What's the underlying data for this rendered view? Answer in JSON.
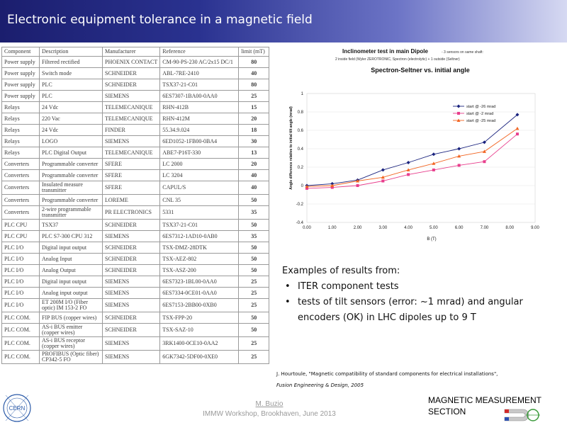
{
  "header": {
    "title": "Electronic equipment tolerance in a magnetic field"
  },
  "table": {
    "columns": [
      "Component",
      "Description",
      "Manufacturer",
      "Reference",
      "limit (mT)"
    ],
    "rows": [
      [
        "Power supply",
        "Filtered rectified",
        "PHOENIX CONTACT",
        "CM-90-PS-230  AC/2x15 DC/1",
        "80"
      ],
      [
        "Power supply",
        "Switch mode",
        "SCHNEIDER",
        "ABL-7RE-2410",
        "40"
      ],
      [
        "Power supply",
        "PLC",
        "SCHNEIDER",
        "TSX37-21-C01",
        "80"
      ],
      [
        "Power supply",
        "PLC",
        "SIEMENS",
        "6ES7307-1BA00-0AA0",
        "25"
      ],
      [
        "Relays",
        "24 Vdc",
        "TELEMECANIQUE",
        "RHN-412B",
        "15"
      ],
      [
        "Relays",
        "220 Vac",
        "TELEMECANIQUE",
        "RHN-412M",
        "20"
      ],
      [
        "Relays",
        "24 Vdc",
        "FINDER",
        "55.34.9.024",
        "18"
      ],
      [
        "Relays",
        "LOGO",
        "SIEMENS",
        "6ED1052-1FB00-0BA4",
        "30"
      ],
      [
        "Relays",
        "PLC Digital Output",
        "TELEMECANIQUE",
        "ABE7-P16T-330",
        "13"
      ],
      [
        "Converters",
        "Programmable converter",
        "SFERE",
        "LC 2000",
        "20"
      ],
      [
        "Converters",
        "Programmable converter",
        "SFERE",
        "LC 3204",
        "40"
      ],
      [
        "Converters",
        "Insulated measure transmitter",
        "SFERE",
        "CAPUL/S",
        "40"
      ],
      [
        "Converters",
        "Programmable converter",
        "LOREME",
        "CNL 35",
        "50"
      ],
      [
        "Converters",
        "2-wire programmable transmitter",
        "PR ELECTRONICS",
        "5331",
        "35"
      ],
      [
        "PLC CPU",
        "TSX37",
        "SCHNEIDER",
        "TSX37-21-C01",
        "50"
      ],
      [
        "PLC CPU",
        "PLC S7-300 CPU 312",
        "SIEMENS",
        "6ES7312-1AD10-0AB0",
        "35"
      ],
      [
        "PLC I/O",
        "Digital input output",
        "SCHNEIDER",
        "TSX-DMZ-28DTK",
        "50"
      ],
      [
        "PLC I/O",
        "Analog Input",
        "SCHNEIDER",
        "TSX-AEZ-802",
        "50"
      ],
      [
        "PLC I/O",
        "Analog Output",
        "SCHNEIDER",
        "TSX-ASZ-200",
        "50"
      ],
      [
        "PLC I/O",
        "Digital input output",
        "SIEMENS",
        "6ES7323-1BL00-0AA0",
        "25"
      ],
      [
        "PLC I/O",
        "Analog input output",
        "SIEMENS",
        "6ES7334-0CE01-0AA0",
        "25"
      ],
      [
        "PLC I/O",
        "ET 200M I/O (Fiber optic) IM 153-2 FO",
        "SIEMENS",
        "6ES7153-2BB00-0XB0",
        "25"
      ],
      [
        "PLC COM.",
        "FIP BUS (copper wires)",
        "SCHNEIDER",
        "TSX-FPP-20",
        "50"
      ],
      [
        "PLC COM.",
        "AS-i BUS emitter (copper wires)",
        "SCHNEIDER",
        "TSX-SAZ-10",
        "50"
      ],
      [
        "PLC COM.",
        "AS-i BUS receptor (copper wires)",
        "SIEMENS",
        "3RK1400-0CE10-0AA2",
        "25"
      ],
      [
        "PLC COM.",
        "PROFIBUS (Optic fiber) CP342-5 FO",
        "SIEMENS",
        "6GK7342-5DF00-0XE0",
        "25"
      ]
    ]
  },
  "chart_data": {
    "type": "line",
    "title": "Spectron-Seltner vs. initial angle",
    "header_main": "Inclinometer test in main Dipole",
    "header_sub1": "- 3 sensors on same shaft:",
    "header_sub2": "2 inside field (Wyler ZEROTRONIC, Spectron (electrolytic) + 1 outside (Seltner)",
    "xlabel": "B (T)",
    "ylabel": "Angle difference relative to initial tilt angle (mrad)",
    "xlim": [
      0,
      9
    ],
    "ylim": [
      -0.4,
      1.0
    ],
    "xticks": [
      "0.00",
      "1.00",
      "2.00",
      "3.00",
      "4.00",
      "5.00",
      "6.00",
      "7.00",
      "8.00",
      "9.00"
    ],
    "yticks": [
      "1",
      "0.8",
      "0.6",
      "0.4",
      "0.2",
      "0",
      "-0.2",
      "-0.4"
    ],
    "legend_position": "right",
    "series": [
      {
        "name": "start @ -26 mrad",
        "color": "#1a237e",
        "marker": "diamond",
        "x": [
          0,
          1,
          2,
          3,
          4,
          5,
          6,
          7,
          8.3
        ],
        "y": [
          0.0,
          0.02,
          0.06,
          0.17,
          0.25,
          0.34,
          0.4,
          0.47,
          0.77
        ]
      },
      {
        "name": "start @ -2 mrad",
        "color": "#e83e8c",
        "marker": "square",
        "x": [
          0,
          1,
          2,
          3,
          4,
          5,
          6,
          7,
          8.3
        ],
        "y": [
          -0.03,
          -0.02,
          0.0,
          0.05,
          0.12,
          0.17,
          0.22,
          0.26,
          0.56
        ]
      },
      {
        "name": "start @ -25 mrad",
        "color": "#f26522",
        "marker": "triangle",
        "x": [
          0,
          1,
          2,
          3,
          4,
          5,
          6,
          7,
          8.3
        ],
        "y": [
          -0.01,
          0.0,
          0.05,
          0.09,
          0.17,
          0.24,
          0.32,
          0.37,
          0.62
        ]
      }
    ]
  },
  "examples": {
    "heading": "Examples of results from:",
    "items": [
      "ITER component tests",
      "tests of tilt sensors (error: ~1 mrad) and angular encoders (OK) in LHC dipoles up to 9 T"
    ]
  },
  "reference": {
    "authors_title": "J. Hourtoule, \"Magnetic compatibility of standard components for electrical installations\",",
    "journal": "Fusion Engineering & Design, 2005"
  },
  "footer": {
    "author": "M. Buzio",
    "event": "IMMW Workshop, Brookhaven, June 2013",
    "logo_text": "CERN",
    "section_line1": "MAGNETIC MEASUREMENT",
    "section_line2": "SECTION"
  },
  "colors": {
    "title_bar_start": "#1b1e6e",
    "title_bar_end": "#d6d9f2"
  }
}
